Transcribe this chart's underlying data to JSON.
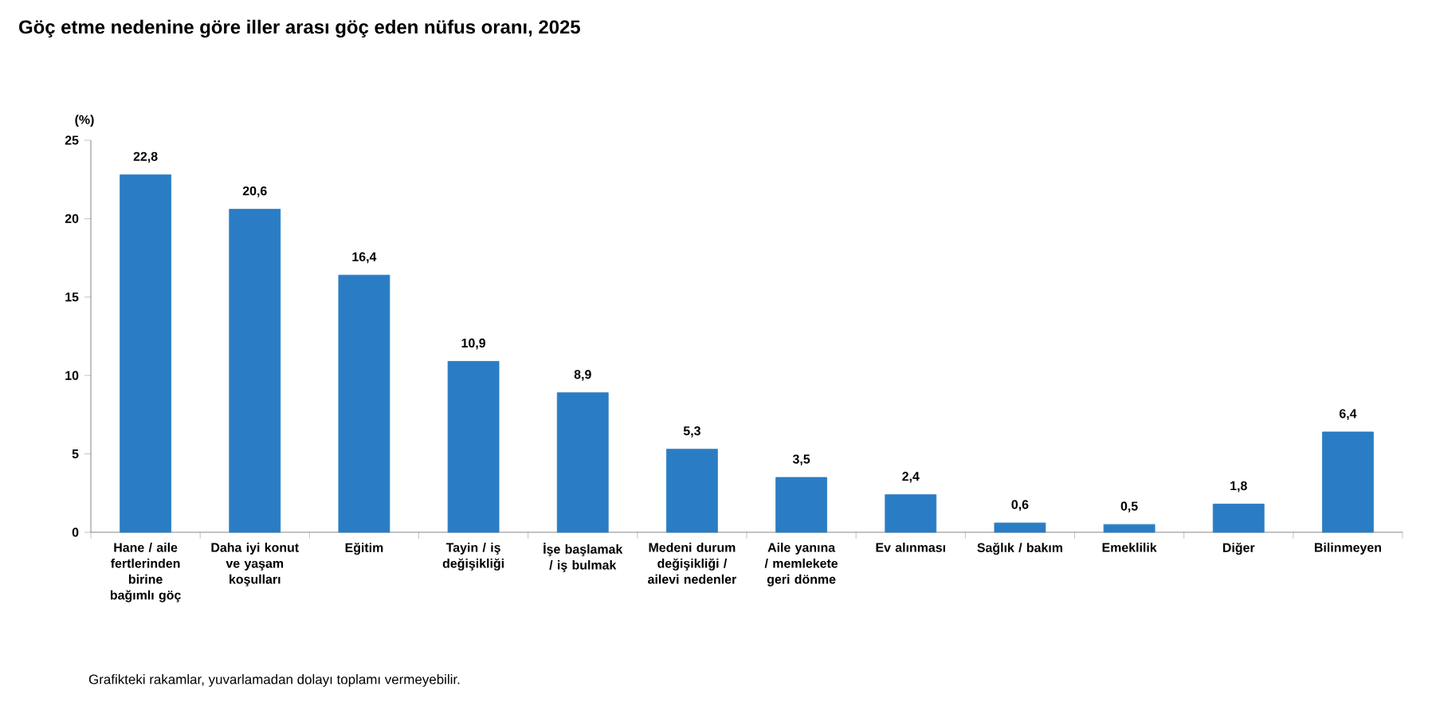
{
  "chart_data": {
    "type": "bar",
    "title": "Göç etme nedenine göre iller arası göç eden nüfus oranı, 2025",
    "ylabel": "(%)",
    "categories": [
      "Hane / aile fertlerinden birine bağımlı göç",
      "Daha iyi konut ve yaşam koşulları",
      "Eğitim",
      "Tayin / iş değişikliği",
      "İşe başlamak / iş bulmak",
      "Medeni durum değişikliği / ailevi nedenler",
      "Aile yanına / memlekete geri dönme",
      "Ev alınması",
      "Sağlık / bakım",
      "Emeklilik",
      "Diğer",
      "Bilinmeyen"
    ],
    "values": [
      22.8,
      20.6,
      16.4,
      10.9,
      8.9,
      5.3,
      3.5,
      2.4,
      0.6,
      0.5,
      1.8,
      6.4
    ],
    "value_labels": [
      "22,8",
      "20,6",
      "16,4",
      "10,9",
      "8,9",
      "5,3",
      "3,5",
      "2,4",
      "0,6",
      "0,5",
      "1,8",
      "6,4"
    ],
    "color": "#2a7dc4",
    "ylim": [
      0,
      25
    ],
    "yticks": [
      0,
      5,
      10,
      15,
      20,
      25
    ],
    "annotations": [
      "Grafikteki rakamlar, yuvarlamadan dolayı toplamı vermeyebilir."
    ]
  }
}
